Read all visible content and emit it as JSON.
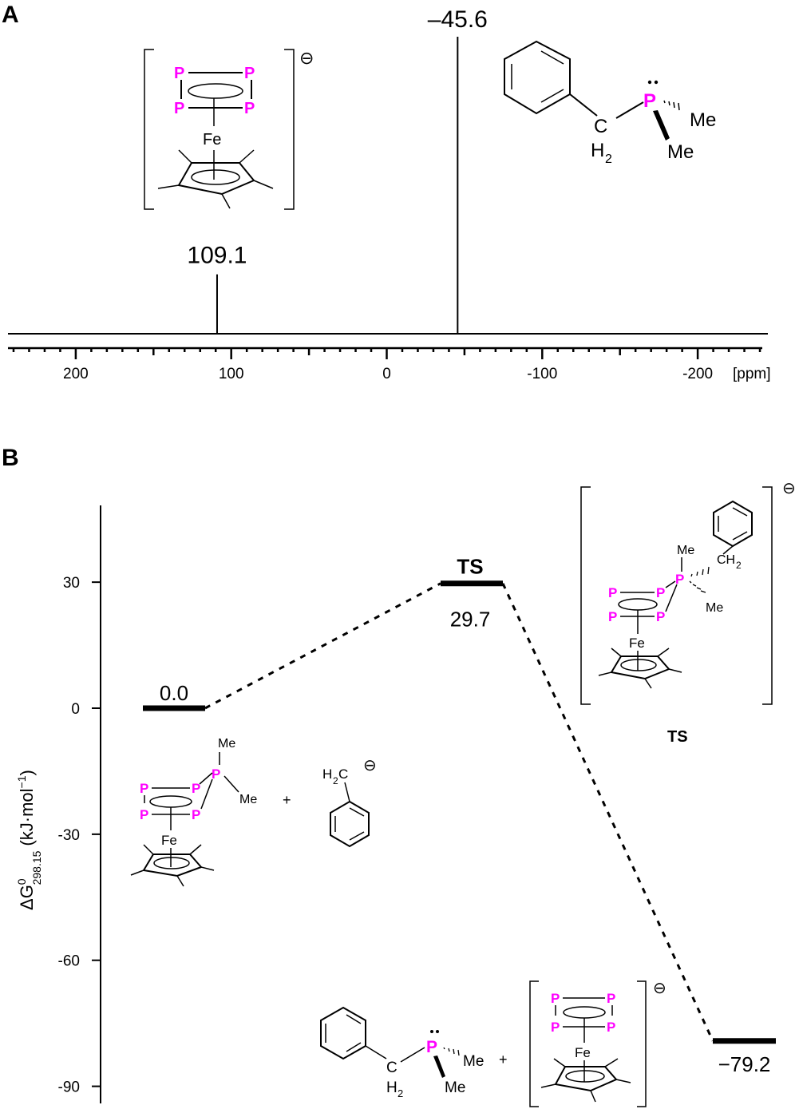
{
  "panel_a": {
    "label": "A",
    "unit_label": "[ppm]",
    "peak_labels": [
      "109.1",
      "–45.6"
    ],
    "complex_charge": "⊖",
    "ligand": {
      "atoms": [
        "P",
        "Me",
        "Me",
        "C",
        "H",
        "2"
      ]
    },
    "complex": {
      "atoms": [
        "P",
        "P",
        "P",
        "P",
        "Fe"
      ]
    }
  },
  "panel_b": {
    "label": "B",
    "ylabel_main": "ΔG",
    "ylabel_sup": "0",
    "ylabel_sub": "298.15",
    "ylabel_unit": "(kJ·mol",
    "ylabel_unit_sup": "−1",
    "ylabel_close": ")",
    "level_labels": [
      "0.0",
      "TS",
      "29.7",
      "−79.2"
    ],
    "ts_caption": "TS",
    "charge": "⊖",
    "plus": "+",
    "species_atoms": {
      "reactant_complex": [
        "P",
        "P",
        "P",
        "P",
        "P",
        "Me",
        "Me",
        "Fe"
      ],
      "benzyl_anion": [
        "H",
        "2",
        "C"
      ],
      "ts_complex": [
        "Me",
        "P",
        "CH",
        "2",
        "Me",
        "P",
        "P",
        "P",
        "P",
        "Fe"
      ],
      "product_phosphine": [
        "P",
        "Me",
        "Me",
        "C",
        "H",
        "2"
      ],
      "product_complex": [
        "P",
        "P",
        "P",
        "P",
        "Fe"
      ]
    }
  },
  "colors": {
    "phosphorus": "#ff00ff",
    "line": "#000000"
  },
  "chart_data": [
    {
      "type": "line",
      "title": "",
      "xlabel": "[ppm]",
      "ylabel": "",
      "xlim": [
        245,
        -245
      ],
      "xaxis_reversed": true,
      "x_ticks": [
        200,
        100,
        0,
        -100,
        -200
      ],
      "x_tick_labels": [
        "200",
        "100",
        "0",
        "-100",
        "-200"
      ],
      "peaks": [
        {
          "x": 109.1,
          "label": "109.1",
          "relative_height": 0.2
        },
        {
          "x": -45.6,
          "label": "–45.6",
          "relative_height": 1.0
        }
      ]
    },
    {
      "type": "line",
      "title": "",
      "ylabel": "ΔG0298.15 (kJ·mol−1)",
      "ylim": [
        -92,
        45
      ],
      "y_ticks": [
        30,
        0,
        -30,
        -60,
        -90
      ],
      "y_tick_labels": [
        "30",
        "0",
        "-30",
        "-60",
        "-90"
      ],
      "series": [
        {
          "values": [
            0.0,
            29.7,
            -79.2
          ]
        }
      ],
      "levels": [
        {
          "label": "0.0",
          "value": 0.0,
          "position": 0
        },
        {
          "label": "29.7",
          "value": 29.7,
          "position": 1,
          "name": "TS"
        },
        {
          "label": "−79.2",
          "value": -79.2,
          "position": 2
        }
      ]
    }
  ]
}
